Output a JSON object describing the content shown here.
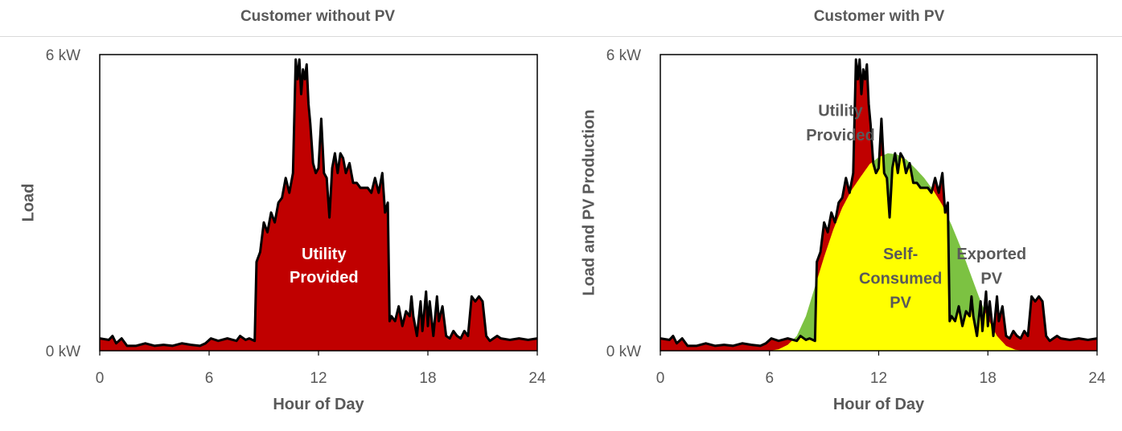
{
  "colors": {
    "utility": "#c00000",
    "self_consumed": "#ffff00",
    "exported": "#7cc242",
    "load_line": "#000000",
    "text": "#595959"
  },
  "chart_data": [
    {
      "type": "area",
      "title": "Customer without PV",
      "xlabel": "Hour of Day",
      "ylabel": "Load",
      "xlim": [
        0,
        24
      ],
      "ylim": [
        0,
        6
      ],
      "x_ticks": [
        "0",
        "6",
        "12",
        "18",
        "24"
      ],
      "y_ticks": [
        "0 kW",
        "6 kW"
      ],
      "series": [
        {
          "name": "Load",
          "x": [
            0,
            0.5,
            0.7,
            0.9,
            1.2,
            1.5,
            2,
            2.5,
            3,
            3.5,
            4,
            4.5,
            5,
            5.5,
            5.8,
            6.1,
            6.5,
            7,
            7.5,
            7.7,
            8,
            8.2,
            8.5,
            8.6,
            8.8,
            9.0,
            9.2,
            9.4,
            9.6,
            9.8,
            10,
            10.2,
            10.4,
            10.6,
            10.75,
            10.85,
            10.95,
            11.05,
            11.15,
            11.25,
            11.35,
            11.45,
            11.55,
            11.7,
            11.85,
            12.0,
            12.15,
            12.3,
            12.45,
            12.6,
            12.75,
            12.9,
            13.05,
            13.2,
            13.35,
            13.5,
            13.7,
            13.9,
            14.1,
            14.3,
            14.5,
            14.7,
            14.9,
            15.1,
            15.3,
            15.5,
            15.65,
            15.8,
            15.9,
            16.0,
            16.2,
            16.4,
            16.6,
            16.8,
            17,
            17.1,
            17.2,
            17.4,
            17.6,
            17.7,
            17.9,
            18.0,
            18.1,
            18.3,
            18.5,
            18.6,
            18.8,
            19,
            19.2,
            19.4,
            19.6,
            19.8,
            20,
            20.2,
            20.4,
            20.6,
            20.8,
            21,
            21.2,
            21.4,
            21.6,
            21.8,
            22,
            22.5,
            23,
            23.5,
            24
          ],
          "values": [
            0.25,
            0.22,
            0.3,
            0.15,
            0.25,
            0.1,
            0.1,
            0.15,
            0.1,
            0.12,
            0.1,
            0.15,
            0.12,
            0.1,
            0.15,
            0.25,
            0.2,
            0.25,
            0.2,
            0.3,
            0.22,
            0.25,
            0.2,
            1.8,
            2.0,
            2.6,
            2.4,
            2.8,
            2.6,
            3.0,
            3.1,
            3.5,
            3.2,
            3.6,
            5.9,
            5.5,
            5.9,
            5.2,
            5.7,
            5.5,
            5.8,
            5.0,
            4.6,
            3.8,
            3.6,
            3.7,
            4.7,
            3.6,
            3.5,
            2.7,
            3.7,
            4.0,
            3.6,
            4.0,
            3.9,
            3.6,
            3.8,
            3.4,
            3.4,
            3.3,
            3.3,
            3.3,
            3.2,
            3.5,
            3.2,
            3.6,
            2.8,
            3.0,
            0.6,
            0.7,
            0.6,
            0.9,
            0.5,
            0.8,
            0.7,
            1.1,
            0.7,
            0.3,
            1.0,
            0.4,
            1.2,
            0.5,
            1.0,
            0.3,
            1.1,
            0.6,
            0.9,
            0.3,
            0.25,
            0.4,
            0.3,
            0.25,
            0.4,
            0.3,
            1.1,
            1.0,
            1.1,
            1.0,
            0.3,
            0.2,
            0.25,
            0.3,
            0.25,
            0.22,
            0.25,
            0.22,
            0.25
          ]
        }
      ],
      "annotations": [
        {
          "text": "Utility",
          "x": 12.3,
          "y": 1.85
        },
        {
          "text": "Provided",
          "x": 12.3,
          "y": 1.38
        }
      ]
    },
    {
      "type": "area",
      "title": "Customer with PV",
      "xlabel": "Hour of Day",
      "ylabel": "Load and PV Production",
      "xlim": [
        0,
        24
      ],
      "ylim": [
        0,
        6
      ],
      "x_ticks": [
        "0",
        "6",
        "12",
        "18",
        "24"
      ],
      "y_ticks": [
        "0 kW",
        "6 kW"
      ],
      "series": [
        {
          "name": "PV Production",
          "x": [
            6,
            6.5,
            7,
            7.5,
            8,
            8.5,
            9,
            9.5,
            10,
            10.5,
            11,
            11.5,
            12,
            12.5,
            13,
            13.5,
            14,
            14.5,
            15,
            15.5,
            16,
            16.5,
            17,
            17.5,
            18,
            18.5,
            19,
            19.5,
            20
          ],
          "values": [
            0,
            0.03,
            0.12,
            0.3,
            0.7,
            1.3,
            1.9,
            2.45,
            2.9,
            3.25,
            3.52,
            3.78,
            3.92,
            4.0,
            3.98,
            3.88,
            3.7,
            3.5,
            3.25,
            2.95,
            2.55,
            2.1,
            1.6,
            1.1,
            0.65,
            0.3,
            0.1,
            0.02,
            0
          ]
        }
      ],
      "annotations": [
        {
          "text": "Utility",
          "x": 9.9,
          "y": 4.76,
          "color": "text"
        },
        {
          "text": "Provided",
          "x": 9.9,
          "y": 4.26,
          "color": "text"
        },
        {
          "text": "Self-",
          "x": 13.2,
          "y": 1.85,
          "color": "text"
        },
        {
          "text": "Consumed",
          "x": 13.2,
          "y": 1.36,
          "color": "text"
        },
        {
          "text": "PV",
          "x": 13.2,
          "y": 0.87,
          "color": "text"
        },
        {
          "text": "Exported",
          "x": 18.2,
          "y": 1.85,
          "color": "text"
        },
        {
          "text": "PV",
          "x": 18.2,
          "y": 1.36,
          "color": "text"
        }
      ]
    }
  ]
}
